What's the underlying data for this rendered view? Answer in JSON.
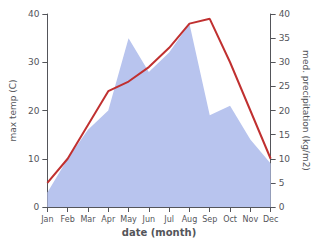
{
  "chart_data": {
    "type": "line",
    "categories": [
      "Jan",
      "Feb",
      "Mar",
      "Apr",
      "May",
      "Jun",
      "Jul",
      "Aug",
      "Sep",
      "Oct",
      "Nov",
      "Dec"
    ],
    "series": [
      {
        "type": "area",
        "axis": "y2",
        "color": "#b8c4ee",
        "values": [
          3,
          10,
          16,
          20,
          35,
          28,
          32,
          38,
          19,
          21,
          14,
          9
        ]
      },
      {
        "type": "line",
        "color": "#c03030",
        "values": [
          5,
          10,
          17,
          24,
          26,
          29,
          33,
          38,
          39,
          30,
          20,
          10
        ]
      }
    ],
    "xlabel": "date (month)",
    "ylabel": "max temp (C)",
    "y2label": "med. precipitation (kg/m2)",
    "ylim": [
      0,
      40
    ],
    "yticks": [
      0,
      10,
      20,
      30,
      40
    ],
    "y2lim": [
      0,
      40
    ],
    "y2ticks": [
      0,
      5,
      10,
      15,
      20,
      25,
      30,
      35,
      40
    ],
    "grid": false
  }
}
